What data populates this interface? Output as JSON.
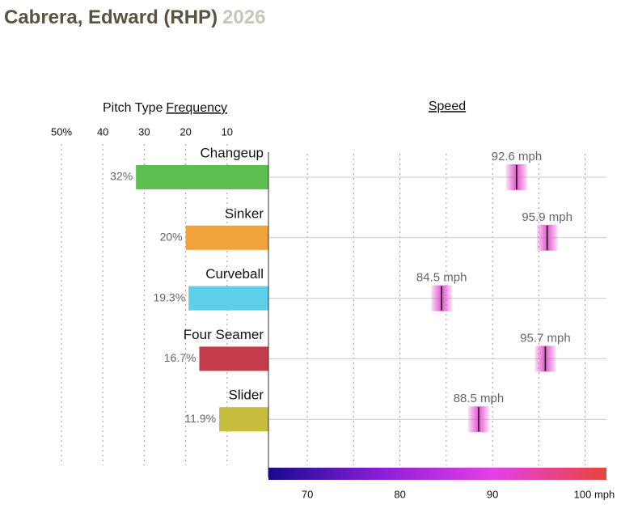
{
  "header": {
    "title": "Cabrera, Edward (RHP)",
    "season": "2026"
  },
  "chart_data": [
    {
      "type": "bar",
      "orientation": "horizontal",
      "title": "Pitch Type",
      "title_underlined": "Frequency",
      "categories": [
        "Changeup",
        "Sinker",
        "Curveball",
        "Four Seamer",
        "Slider"
      ],
      "values": [
        32,
        20,
        19.3,
        16.7,
        11.9
      ],
      "value_labels": [
        "32%",
        "20%",
        "19.3%",
        "16.7%",
        "11.9%"
      ],
      "colors": [
        "#5dbf4f",
        "#f0a33b",
        "#5dcfe9",
        "#c43c4b",
        "#c5bd3b"
      ],
      "xlim": [
        0,
        50
      ],
      "xticks": [
        {
          "value": 50,
          "label": "50%"
        },
        40,
        30,
        20,
        10
      ],
      "grid": true
    },
    {
      "type": "dot",
      "title": "Speed",
      "values": [
        92.6,
        95.9,
        84.5,
        95.7,
        88.5
      ],
      "value_labels": [
        "92.6 mph",
        "95.9 mph",
        "84.5 mph",
        "95.7 mph",
        "88.5 mph"
      ],
      "color": "#e23fc8",
      "xlim": [
        65.8,
        102.3
      ],
      "xticks": [
        70,
        80,
        90,
        {
          "value": 100,
          "label": "100 mph"
        }
      ],
      "minor_xticks": [
        75,
        85,
        95
      ],
      "grid": true,
      "colorbar": [
        "#170a8e",
        "#8a1fd8",
        "#e540e6",
        "#e8453a"
      ]
    }
  ]
}
